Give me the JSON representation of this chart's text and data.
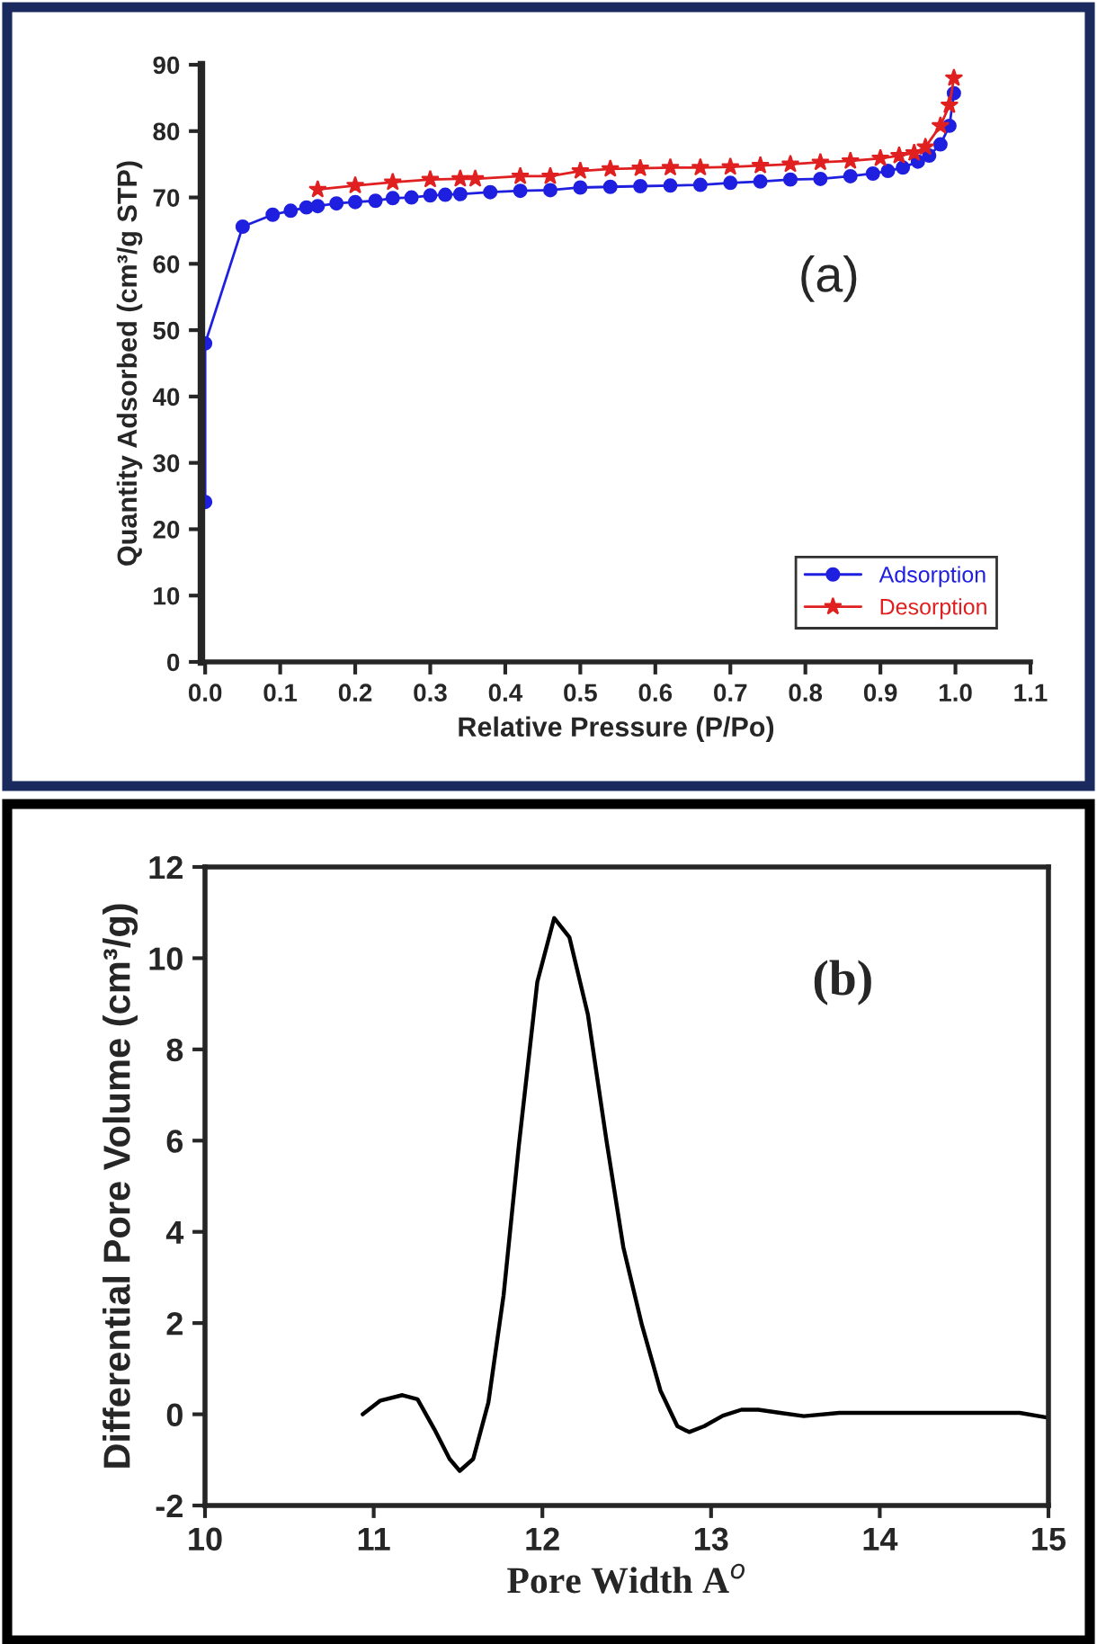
{
  "chart_data": [
    {
      "type": "line",
      "xlabel": "Relative Pressure (P/Po)",
      "ylabel": "Quantity Adsorbed (cm³/g STP)",
      "annotations": [
        "(a)"
      ],
      "xlim": [
        -0.005,
        1.1
      ],
      "ylim": [
        0,
        90
      ],
      "xticks": [
        {
          "value": 0,
          "label": "0.0"
        },
        0.1,
        0.2,
        0.3,
        0.4,
        0.5,
        0.6,
        0.7,
        0.8,
        0.9,
        {
          "value": 1,
          "label": "1.0"
        },
        1.1
      ],
      "yticks": [
        0,
        10,
        20,
        30,
        40,
        50,
        60,
        70,
        80,
        90
      ],
      "grid": false,
      "legend": "bottom right",
      "line_style": "solid",
      "series": [
        {
          "name": "Adsorption",
          "color": "#1f1fe0",
          "marker": "circle",
          "x": [
            0.0,
            0.0,
            0.05,
            0.09,
            0.114,
            0.135,
            0.15,
            0.175,
            0.2,
            0.227,
            0.25,
            0.275,
            0.3,
            0.32,
            0.34,
            0.38,
            0.42,
            0.46,
            0.5,
            0.54,
            0.58,
            0.62,
            0.66,
            0.7,
            0.74,
            0.78,
            0.82,
            0.86,
            0.89,
            0.91,
            0.93,
            0.95,
            0.965,
            0.98,
            0.992,
            0.998
          ],
          "values": [
            24.1,
            48,
            65.6,
            67.4,
            68,
            68.5,
            68.7,
            69.1,
            69.3,
            69.5,
            69.9,
            70.0,
            70.3,
            70.4,
            70.5,
            70.8,
            71.0,
            71.1,
            71.5,
            71.6,
            71.7,
            71.8,
            71.9,
            72.2,
            72.4,
            72.7,
            72.8,
            73.2,
            73.6,
            74,
            74.5,
            75.4,
            76.3,
            78,
            80.8,
            85.7
          ]
        },
        {
          "name": "Desorption",
          "color": "#e02020",
          "marker": "star",
          "x": [
            0.15,
            0.2,
            0.25,
            0.3,
            0.34,
            0.36,
            0.42,
            0.46,
            0.5,
            0.54,
            0.58,
            0.62,
            0.66,
            0.7,
            0.74,
            0.78,
            0.82,
            0.86,
            0.9,
            0.925,
            0.945,
            0.96,
            0.98,
            0.992,
            0.998
          ],
          "values": [
            71.2,
            71.8,
            72.3,
            72.7,
            72.8,
            72.8,
            73.2,
            73.2,
            74,
            74.3,
            74.4,
            74.5,
            74.5,
            74.6,
            74.8,
            75,
            75.3,
            75.5,
            75.9,
            76.3,
            76.7,
            77.6,
            80.8,
            83.9,
            88
          ]
        }
      ]
    },
    {
      "type": "line",
      "xlabel": "Pore Width A$^{o}$",
      "ylabel": "Differential Pore Volume (cm³/g)",
      "annotations": [
        "(b)"
      ],
      "xlim": [
        10,
        15
      ],
      "ylim": [
        -2,
        12
      ],
      "xticks": [
        10,
        11,
        12,
        13,
        14,
        15
      ],
      "yticks": [
        -2,
        0,
        2,
        4,
        6,
        8,
        10,
        12
      ],
      "grid": false,
      "line_style": "solid",
      "series": [
        {
          "color": "#000000",
          "x": [
            10.935,
            11.04,
            11.17,
            11.26,
            11.36,
            11.45,
            11.51,
            11.59,
            11.68,
            11.77,
            11.86,
            11.97,
            12.07,
            12.16,
            12.27,
            12.38,
            12.48,
            12.59,
            12.7,
            12.8,
            12.87,
            12.96,
            13.07,
            13.18,
            13.28,
            13.41,
            13.55,
            13.76,
            14.12,
            14.47,
            14.83,
            14.99
          ],
          "values": [
            0,
            0.3,
            0.42,
            0.33,
            -0.33,
            -0.98,
            -1.24,
            -0.98,
            0.26,
            2.61,
            5.88,
            9.48,
            10.88,
            10.46,
            8.76,
            6.0,
            3.66,
            1.96,
            0.52,
            -0.26,
            -0.39,
            -0.26,
            -0.03,
            0.1,
            0.1,
            0.03,
            -0.04,
            0.03,
            0.03,
            0.03,
            0.03,
            -0.07
          ]
        }
      ]
    }
  ]
}
